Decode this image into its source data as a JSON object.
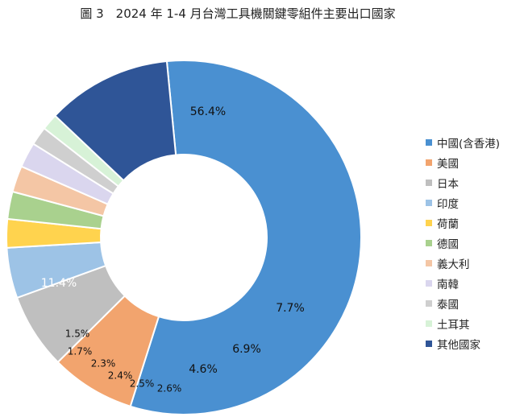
{
  "chart_data": {
    "type": "pie",
    "title": "圖 3　2024 年 1-4 月台灣工具機關鍵零組件主要出口國家",
    "donut": true,
    "legend_position": "right",
    "categories": [
      "中國(含香港)",
      "美國",
      "日本",
      "印度",
      "荷蘭",
      "德國",
      "義大利",
      "南韓",
      "泰國",
      "土耳其",
      "其他國家"
    ],
    "values": [
      56.4,
      7.7,
      6.9,
      4.6,
      2.6,
      2.5,
      2.4,
      2.3,
      1.7,
      1.5,
      11.4
    ],
    "data_labels": [
      "56.4%",
      "7.7%",
      "6.9%",
      "4.6%",
      "2.6%",
      "2.5%",
      "2.4%",
      "2.3%",
      "1.7%",
      "1.5%",
      "11.4%"
    ],
    "colors": [
      "#4A90D1",
      "#F2A46E",
      "#BFBFBF",
      "#9DC3E6",
      "#FFD34E",
      "#A9D18E",
      "#F4C6A5",
      "#DAD6EE",
      "#CFCFCF",
      "#D7F2D7",
      "#2F5597"
    ],
    "label_colors": [
      "#111111",
      "#111111",
      "#111111",
      "#111111",
      "#111111",
      "#111111",
      "#111111",
      "#111111",
      "#111111",
      "#111111",
      "#ffffff"
    ]
  }
}
